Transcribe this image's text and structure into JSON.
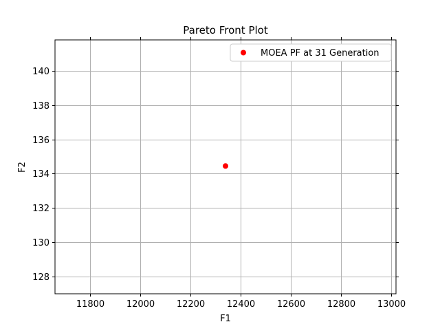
{
  "chart_data": {
    "type": "scatter",
    "title": "Pareto Front Plot",
    "xlabel": "F1",
    "ylabel": "F2",
    "xlim": [
      11660,
      13020
    ],
    "ylim": [
      127.0,
      141.8
    ],
    "xticks": [
      11800,
      12000,
      12200,
      12400,
      12600,
      12800,
      13000
    ],
    "yticks": [
      128,
      130,
      132,
      134,
      136,
      138,
      140
    ],
    "grid": true,
    "legend_position": "upper right",
    "series": [
      {
        "name": "MOEA PF at 31 Generation",
        "color": "#ff0000",
        "marker": "circle",
        "points": [
          {
            "x": 12340,
            "y": 134.45
          }
        ]
      }
    ]
  },
  "style": {
    "grid_color": "#b0b0b0",
    "axis_color": "#000000",
    "legend_border_color": "#cccccc"
  }
}
